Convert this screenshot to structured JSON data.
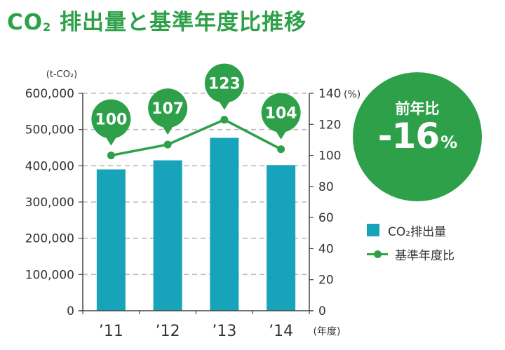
{
  "title": {
    "prefix": "CO",
    "sub": "2",
    "rest": " 排出量と基準年度比推移"
  },
  "badge": {
    "label": "前年比",
    "value": "-16",
    "unit": "%"
  },
  "legend": {
    "bar": "CO₂排出量",
    "line": "基準年度比"
  },
  "colors": {
    "bar": "#17a3b9",
    "line": "#2ea04a",
    "accent": "#2ea04a",
    "grid": "#bbbbbb"
  },
  "chart_data": {
    "type": "bar",
    "categories": [
      "’11",
      "’12",
      "’13",
      "’14"
    ],
    "x_unit": "(年度)",
    "series": [
      {
        "name": "CO₂排出量",
        "type": "bar",
        "axis": "left",
        "values": [
          390000,
          415000,
          477000,
          402000
        ]
      },
      {
        "name": "基準年度比",
        "type": "line",
        "axis": "right",
        "values": [
          100,
          107,
          123,
          104
        ],
        "labels": [
          "100",
          "107",
          "123",
          "104"
        ]
      }
    ],
    "y_left": {
      "unit": "(t-CO₂)",
      "ylim": [
        0,
        600000
      ],
      "ticks": [
        "0",
        "100,000",
        "200,000",
        "300,000",
        "400,000",
        "500,000",
        "600,000"
      ]
    },
    "y_right": {
      "unit": "(%)",
      "ylim": [
        0,
        140
      ],
      "ticks": [
        "0",
        "20",
        "40",
        "60",
        "80",
        "100",
        "120",
        "140"
      ]
    },
    "grid": true
  }
}
